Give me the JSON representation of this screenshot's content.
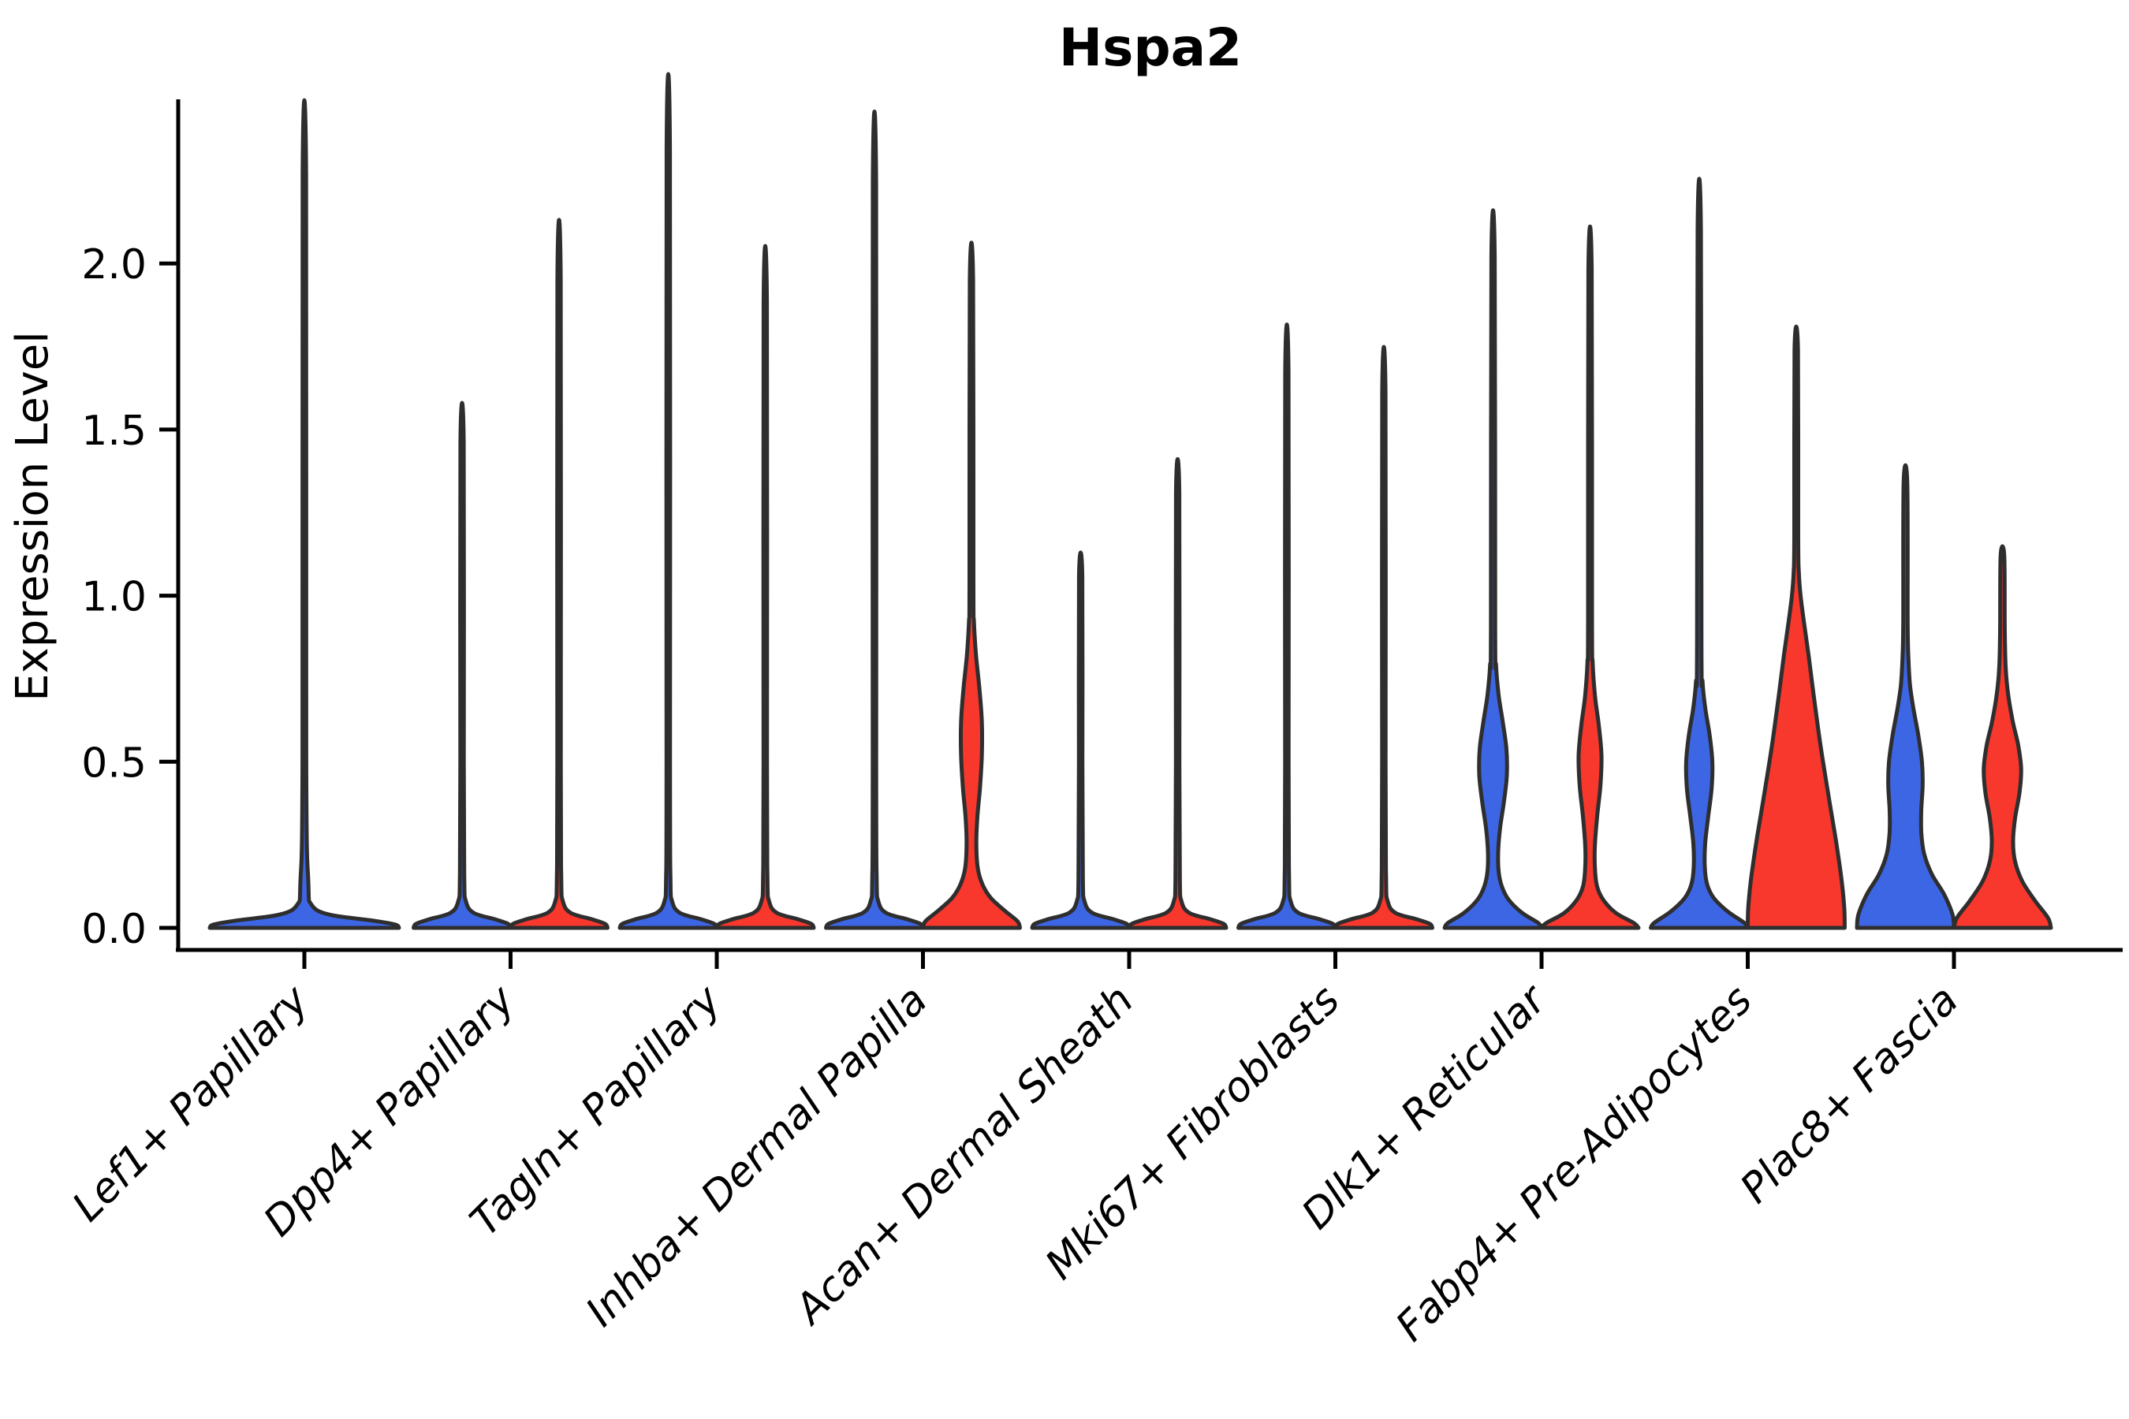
{
  "title": "Hspa2",
  "ylabel": "Expression Level",
  "colors": {
    "blue": "#3D66E5",
    "red": "#F8372D",
    "outline": "#2E2E2E",
    "axis": "#000000",
    "background": "#FFFFFF"
  },
  "chart_data": {
    "type": "violin",
    "title": "Hspa2",
    "xlabel": "",
    "ylabel": "Expression Level",
    "ylim": [
      -0.06,
      2.48
    ],
    "yticks": [
      0.0,
      0.5,
      1.0,
      1.5,
      2.0
    ],
    "ytick_labels": [
      "0.0",
      "0.5",
      "1.0",
      "1.5",
      "2.0"
    ],
    "x_tick_rotation": 45,
    "grid": false,
    "legend": "none",
    "categories": [
      "Lef1+ Papillary",
      "Dpp4+ Papillary",
      "Tagln+ Papillary",
      "Inhba+ Dermal Papilla",
      "Acan+ Dermal Sheath",
      "Mki67+ Fibroblasts",
      "Dlk1+ Reticular",
      "Fabp4+ Pre-Adipocytes",
      "Plac8+ Fascia"
    ],
    "series": [
      {
        "name": "blue",
        "color": "#3D66E5",
        "max_expression": [
          2.27,
          1.46,
          2.34,
          2.24,
          1.06,
          1.67,
          2.02,
          2.1,
          1.34
        ]
      },
      {
        "name": "red",
        "color": "#F8372D",
        "max_expression": [
          null,
          1.95,
          1.88,
          1.95,
          1.31,
          1.61,
          1.98,
          1.74,
          1.12
        ]
      }
    ],
    "note": "Lef1+ Papillary shows a single full-width violin centered on its tick; most violins collapse to a thin spike at expression 0 with only Inhba+ (red), Dlk1+, Fabp4+ and Plac8+ showing visible colored density bodies.",
    "violins": [
      {
        "category": 0,
        "color": "blue",
        "offset": 0,
        "max": 2.27,
        "shape": [
          [
            0,
            1
          ],
          [
            0.01,
            0.96
          ],
          [
            0.022,
            0.72
          ],
          [
            0.04,
            0.26
          ],
          [
            0.07,
            0.075
          ],
          [
            0.14,
            0.042
          ],
          [
            0.5,
            0.02
          ],
          [
            2.27,
            0.018
          ]
        ]
      },
      {
        "category": 1,
        "color": "blue",
        "offset": -1,
        "max": 1.46,
        "shape": [
          [
            0,
            1
          ],
          [
            0.012,
            0.95
          ],
          [
            0.025,
            0.7
          ],
          [
            0.045,
            0.24
          ],
          [
            0.08,
            0.08
          ],
          [
            0.15,
            0.045
          ],
          [
            0.5,
            0.036
          ],
          [
            1.46,
            0.034
          ]
        ]
      },
      {
        "category": 1,
        "color": "red",
        "offset": 1,
        "max": 1.95,
        "shape": [
          [
            0,
            1
          ],
          [
            0.012,
            0.95
          ],
          [
            0.025,
            0.7
          ],
          [
            0.045,
            0.24
          ],
          [
            0.08,
            0.08
          ],
          [
            0.15,
            0.045
          ],
          [
            0.5,
            0.036
          ],
          [
            1.95,
            0.034
          ]
        ]
      },
      {
        "category": 2,
        "color": "blue",
        "offset": -1,
        "max": 2.34,
        "shape": [
          [
            0,
            1
          ],
          [
            0.012,
            0.95
          ],
          [
            0.025,
            0.7
          ],
          [
            0.045,
            0.24
          ],
          [
            0.08,
            0.08
          ],
          [
            0.15,
            0.045
          ],
          [
            0.5,
            0.036
          ],
          [
            2.34,
            0.034
          ]
        ]
      },
      {
        "category": 2,
        "color": "red",
        "offset": 1,
        "max": 1.88,
        "shape": [
          [
            0,
            1
          ],
          [
            0.012,
            0.95
          ],
          [
            0.025,
            0.7
          ],
          [
            0.045,
            0.24
          ],
          [
            0.08,
            0.08
          ],
          [
            0.15,
            0.045
          ],
          [
            0.5,
            0.036
          ],
          [
            1.88,
            0.034
          ]
        ]
      },
      {
        "category": 3,
        "color": "blue",
        "offset": -1,
        "max": 2.24,
        "shape": [
          [
            0,
            1
          ],
          [
            0.012,
            0.95
          ],
          [
            0.025,
            0.7
          ],
          [
            0.045,
            0.24
          ],
          [
            0.08,
            0.08
          ],
          [
            0.15,
            0.045
          ],
          [
            0.5,
            0.036
          ],
          [
            2.24,
            0.034
          ]
        ]
      },
      {
        "category": 3,
        "color": "red",
        "offset": 1,
        "max": 1.95,
        "shape": [
          [
            0,
            1
          ],
          [
            0.02,
            0.95
          ],
          [
            0.05,
            0.7
          ],
          [
            0.09,
            0.4
          ],
          [
            0.13,
            0.23
          ],
          [
            0.18,
            0.13
          ],
          [
            0.25,
            0.1
          ],
          [
            0.33,
            0.12
          ],
          [
            0.42,
            0.175
          ],
          [
            0.52,
            0.215
          ],
          [
            0.62,
            0.215
          ],
          [
            0.72,
            0.165
          ],
          [
            0.82,
            0.095
          ],
          [
            0.92,
            0.052
          ],
          [
            1.05,
            0.04
          ],
          [
            1.95,
            0.034
          ]
        ]
      },
      {
        "category": 4,
        "color": "blue",
        "offset": -1,
        "max": 1.06,
        "shape": [
          [
            0,
            1
          ],
          [
            0.012,
            0.95
          ],
          [
            0.025,
            0.7
          ],
          [
            0.045,
            0.24
          ],
          [
            0.08,
            0.08
          ],
          [
            0.15,
            0.045
          ],
          [
            0.5,
            0.036
          ],
          [
            1.06,
            0.034
          ]
        ]
      },
      {
        "category": 4,
        "color": "red",
        "offset": 1,
        "max": 1.31,
        "shape": [
          [
            0,
            1
          ],
          [
            0.012,
            0.95
          ],
          [
            0.025,
            0.7
          ],
          [
            0.045,
            0.24
          ],
          [
            0.08,
            0.08
          ],
          [
            0.15,
            0.045
          ],
          [
            0.5,
            0.036
          ],
          [
            1.31,
            0.034
          ]
        ]
      },
      {
        "category": 5,
        "color": "blue",
        "offset": -1,
        "max": 1.67,
        "shape": [
          [
            0,
            1
          ],
          [
            0.012,
            0.95
          ],
          [
            0.025,
            0.7
          ],
          [
            0.045,
            0.24
          ],
          [
            0.08,
            0.08
          ],
          [
            0.15,
            0.045
          ],
          [
            0.5,
            0.036
          ],
          [
            1.67,
            0.034
          ]
        ]
      },
      {
        "category": 5,
        "color": "red",
        "offset": 1,
        "max": 1.61,
        "shape": [
          [
            0,
            1
          ],
          [
            0.012,
            0.95
          ],
          [
            0.025,
            0.7
          ],
          [
            0.045,
            0.24
          ],
          [
            0.08,
            0.08
          ],
          [
            0.15,
            0.045
          ],
          [
            0.5,
            0.036
          ],
          [
            1.61,
            0.034
          ]
        ]
      },
      {
        "category": 6,
        "color": "blue",
        "offset": -1,
        "max": 2.02,
        "shape": [
          [
            0,
            1
          ],
          [
            0.015,
            0.93
          ],
          [
            0.045,
            0.6
          ],
          [
            0.085,
            0.32
          ],
          [
            0.125,
            0.18
          ],
          [
            0.17,
            0.115
          ],
          [
            0.23,
            0.105
          ],
          [
            0.3,
            0.145
          ],
          [
            0.38,
            0.225
          ],
          [
            0.46,
            0.285
          ],
          [
            0.54,
            0.275
          ],
          [
            0.62,
            0.2
          ],
          [
            0.7,
            0.115
          ],
          [
            0.79,
            0.062
          ],
          [
            0.9,
            0.044
          ],
          [
            2.02,
            0.034
          ]
        ]
      },
      {
        "category": 6,
        "color": "red",
        "offset": 1,
        "max": 1.98,
        "shape": [
          [
            0,
            1
          ],
          [
            0.015,
            0.9
          ],
          [
            0.045,
            0.53
          ],
          [
            0.085,
            0.27
          ],
          [
            0.125,
            0.145
          ],
          [
            0.18,
            0.1
          ],
          [
            0.25,
            0.1
          ],
          [
            0.34,
            0.15
          ],
          [
            0.43,
            0.215
          ],
          [
            0.52,
            0.235
          ],
          [
            0.61,
            0.18
          ],
          [
            0.7,
            0.1
          ],
          [
            0.8,
            0.054
          ],
          [
            0.93,
            0.04
          ],
          [
            1.98,
            0.034
          ]
        ]
      },
      {
        "category": 7,
        "color": "blue",
        "offset": -1,
        "max": 2.1,
        "shape": [
          [
            0,
            1
          ],
          [
            0.015,
            0.93
          ],
          [
            0.05,
            0.58
          ],
          [
            0.09,
            0.3
          ],
          [
            0.13,
            0.165
          ],
          [
            0.18,
            0.115
          ],
          [
            0.25,
            0.12
          ],
          [
            0.33,
            0.18
          ],
          [
            0.42,
            0.255
          ],
          [
            0.5,
            0.27
          ],
          [
            0.58,
            0.215
          ],
          [
            0.66,
            0.125
          ],
          [
            0.74,
            0.068
          ],
          [
            0.86,
            0.045
          ],
          [
            2.1,
            0.034
          ]
        ]
      },
      {
        "category": 7,
        "color": "red",
        "offset": 1,
        "max": 1.74,
        "shape": [
          [
            0,
            1
          ],
          [
            0.06,
            0.99
          ],
          [
            0.15,
            0.93
          ],
          [
            0.28,
            0.8
          ],
          [
            0.42,
            0.64
          ],
          [
            0.56,
            0.49
          ],
          [
            0.7,
            0.36
          ],
          [
            0.82,
            0.255
          ],
          [
            0.92,
            0.16
          ],
          [
            1.0,
            0.09
          ],
          [
            1.07,
            0.054
          ],
          [
            1.18,
            0.04
          ],
          [
            1.74,
            0.035
          ]
        ]
      },
      {
        "category": 8,
        "color": "blue",
        "offset": -1,
        "max": 1.34,
        "shape": [
          [
            0,
            1
          ],
          [
            0.04,
            0.97
          ],
          [
            0.1,
            0.8
          ],
          [
            0.16,
            0.55
          ],
          [
            0.22,
            0.39
          ],
          [
            0.28,
            0.33
          ],
          [
            0.35,
            0.325
          ],
          [
            0.43,
            0.355
          ],
          [
            0.5,
            0.34
          ],
          [
            0.58,
            0.265
          ],
          [
            0.66,
            0.165
          ],
          [
            0.73,
            0.095
          ],
          [
            0.81,
            0.062
          ],
          [
            0.92,
            0.046
          ],
          [
            1.34,
            0.038
          ]
        ]
      },
      {
        "category": 8,
        "color": "red",
        "offset": 1,
        "max": 1.12,
        "shape": [
          [
            0,
            1
          ],
          [
            0.03,
            0.94
          ],
          [
            0.08,
            0.68
          ],
          [
            0.14,
            0.41
          ],
          [
            0.2,
            0.26
          ],
          [
            0.26,
            0.22
          ],
          [
            0.33,
            0.26
          ],
          [
            0.41,
            0.355
          ],
          [
            0.48,
            0.385
          ],
          [
            0.55,
            0.325
          ],
          [
            0.62,
            0.215
          ],
          [
            0.7,
            0.12
          ],
          [
            0.78,
            0.068
          ],
          [
            0.89,
            0.048
          ],
          [
            1.12,
            0.038
          ]
        ]
      }
    ]
  }
}
